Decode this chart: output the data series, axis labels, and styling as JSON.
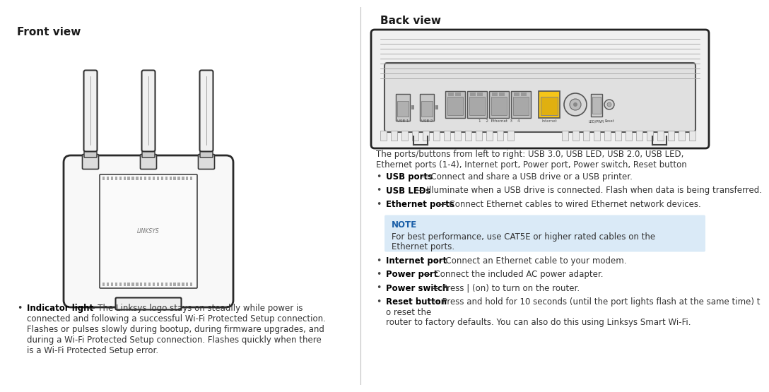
{
  "title_front": "Front view",
  "title_back": "Back view",
  "bg_color": "#ffffff",
  "divider_color": "#c0c0c0",
  "note_bg": "#daeaf7",
  "note_label_color": "#1a5fa8",
  "intro_text1": "The ports/buttons from left to right: USB 3.0, USB LED, USB 2.0, USB LED,",
  "intro_text2": "Ethernet ports (1-4), Internet port, Power port, Power switch, Reset button",
  "bullets_left": [
    {
      "bold": "Indicator light",
      "rest": " — The Linksys logo stays on steadily while power is connected and following a successful Wi-Fi Protected Setup connection. Flashes or pulses slowly during bootup, during firmware upgrades, and during a Wi-Fi Protected Setup connection. Flashes quickly when there is a Wi-Fi Protected Setup error."
    }
  ],
  "bullets_right": [
    {
      "bold": "USB ports",
      "rest": " — Connect and share a USB drive or a USB printer.",
      "note_after": false
    },
    {
      "bold": "USB LEDs",
      "rest": " — Illuminate when a USB drive is connected.  Flash when data is being transferred.",
      "note_after": false
    },
    {
      "bold": "Ethernet ports",
      "rest": " — Connect Ethernet cables to wired Ethernet network devices.",
      "note_after": true
    },
    {
      "bold": "Internet port",
      "rest": " — Connect an Ethernet cable  to your modem.",
      "note_after": false
    },
    {
      "bold": "Power port",
      "rest": " — Connect the included AC power adapter.",
      "note_after": false
    },
    {
      "bold": "Power switch",
      "rest": " — Press | (on) to turn on the router.",
      "note_after": false
    },
    {
      "bold": "Reset button",
      "rest": " — Press and hold for 10 seconds (until the port lights flash at the same time) to reset the router to factory defaults. You can also do this using Linksys Smart Wi-Fi.",
      "note_after": false
    }
  ],
  "note_title": "NOTE",
  "note_text1": "For best performance, use CAT5E or higher rated cables on the",
  "note_text2": "Ethernet ports."
}
